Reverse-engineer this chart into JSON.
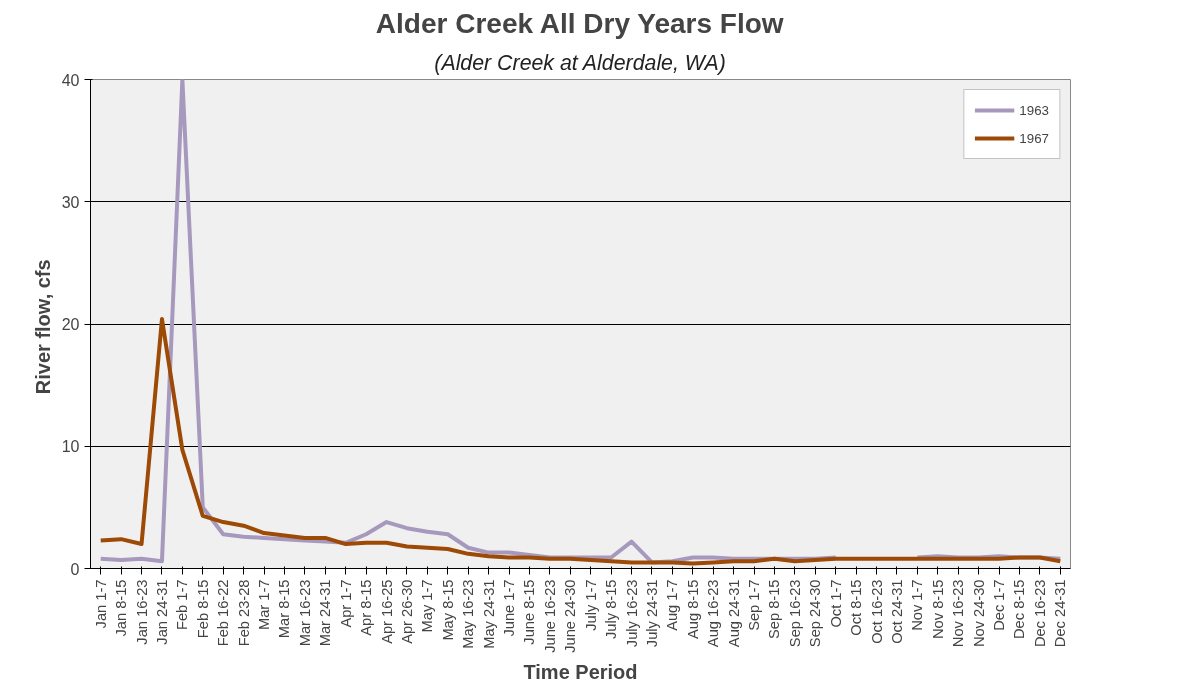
{
  "chart_data": {
    "type": "line",
    "title": "Alder Creek All Dry Years Flow",
    "subtitle": "(Alder Creek at Alderdale, WA)",
    "xlabel": "Time Period",
    "ylabel": "River  flow, cfs",
    "categories": [
      "Jan 1-7",
      "Jan 8-15",
      "Jan 16-23",
      "Jan 24-31",
      "Feb 1-7",
      "Feb 8-15",
      "Feb 16-22",
      "Feb 23-28",
      "Mar 1-7",
      "Mar 8-15",
      "Mar 16-23",
      "Mar 24-31",
      "Apr 1-7",
      "Apr 8-15",
      "Apr 16-25",
      "Apr 26-30",
      "May 1-7",
      "May 8-15",
      "May 16-23",
      "May 24-31",
      "June 1-7",
      "June 8-15",
      "June 16-23",
      "June 24-30",
      "July 1-7",
      "July 8-15",
      "July 16-23",
      "July 24-31",
      "Aug 1-7",
      "Aug 8-15",
      "Aug 16-23",
      "Aug 24-31",
      "Sep 1-7",
      "Sep 8-15",
      "Sep 16-23",
      "Sep 24-30",
      "Oct 1-7",
      "Oct 8-15",
      "Oct 16-23",
      "Oct 24-31",
      "Nov 1-7",
      "Nov 8-15",
      "Nov 16-23",
      "Nov 24-30",
      "Dec 1-7",
      "Dec 8-15",
      "Dec 16-23",
      "Dec 24-31"
    ],
    "series": [
      {
        "name": "1963",
        "color": "#a699bd",
        "values": [
          0.8,
          0.7,
          0.8,
          0.6,
          40,
          5,
          2.8,
          2.6,
          2.5,
          2.4,
          2.3,
          2.2,
          2.1,
          2.8,
          3.8,
          3.3,
          3.0,
          2.8,
          1.7,
          1.3,
          1.3,
          1.1,
          0.9,
          0.9,
          0.9,
          0.9,
          2.2,
          0.5,
          0.6,
          0.9,
          0.9,
          0.8,
          0.8,
          0.8,
          0.8,
          0.8,
          0.9,
          null,
          null,
          null,
          0.9,
          1.0,
          0.9,
          0.9,
          1.0,
          0.9,
          0.9,
          0.8
        ]
      },
      {
        "name": "1967",
        "color": "#9c4a06",
        "values": [
          2.3,
          2.4,
          2.0,
          20.4,
          9.7,
          4.3,
          3.8,
          3.5,
          2.9,
          2.7,
          2.5,
          2.5,
          2.0,
          2.1,
          2.1,
          1.8,
          1.7,
          1.6,
          1.2,
          1.0,
          0.9,
          0.9,
          0.8,
          0.8,
          0.7,
          0.6,
          0.5,
          0.5,
          0.5,
          0.4,
          0.5,
          0.6,
          0.6,
          0.8,
          0.6,
          0.7,
          0.8,
          0.8,
          0.8,
          0.8,
          0.8,
          0.8,
          0.8,
          0.8,
          0.8,
          0.9,
          0.9,
          0.6
        ]
      }
    ],
    "ylim": [
      0,
      40
    ],
    "yticks": [
      0,
      10,
      20,
      30,
      40
    ],
    "grid": "y",
    "legend": "top right",
    "marker": "none",
    "line_style": "solid"
  }
}
